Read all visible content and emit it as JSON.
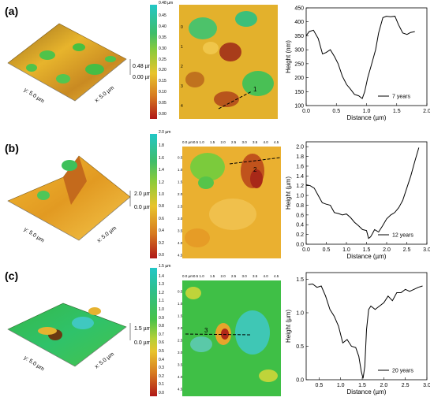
{
  "panels": [
    {
      "label": "(a)",
      "surface": {
        "x_axis": "x: 5.0 µm",
        "y_axis": "y: 5.0 µm",
        "z_top": "0.48 µm",
        "z_bottom": "0.00 µm"
      },
      "colorbar": {
        "top": "0.48 µm",
        "ticks": [
          "0.45",
          "0.40",
          "0.35",
          "0.30",
          "0.25",
          "0.20",
          "0.15",
          "0.10",
          "0.05",
          "0.00"
        ]
      },
      "map": {
        "y_ticks": [
          "0",
          "1",
          "2",
          "3",
          "4"
        ],
        "line_label": "1"
      }
    },
    {
      "label": "(b)",
      "surface": {
        "x_axis": "x: 5.0 µm",
        "y_axis": "y: 5.0 µm",
        "z_top": "2.0 µm",
        "z_bottom": "0.0 µm"
      },
      "colorbar": {
        "top": "2.0 µm",
        "ticks": [
          "1.8",
          "1.6",
          "1.4",
          "1.2",
          "1.0",
          "0.8",
          "0.6",
          "0.4",
          "0.2",
          "0.0"
        ]
      },
      "map": {
        "x_ticks": [
          "0.0 µm0.5",
          "1.0",
          "1.5",
          "2.0",
          "2.5",
          "3.0",
          "3.5",
          "4.0",
          "4.5"
        ],
        "y_ticks": [
          "0.5",
          "1.0",
          "1.5",
          "2.0",
          "2.5",
          "3.0",
          "3.5",
          "4.0",
          "4.5"
        ],
        "line_label": "2"
      }
    },
    {
      "label": "(c)",
      "surface": {
        "x_axis": "x: 5.0 µm",
        "y_axis": "y: 5.0 µm",
        "z_top": "1.5 µm",
        "z_bottom": "0.0 µm"
      },
      "colorbar": {
        "top": "1.5 µm",
        "ticks": [
          "1.4",
          "1.3",
          "1.2",
          "1.1",
          "1.0",
          "0.9",
          "0.8",
          "0.7",
          "0.6",
          "0.5",
          "0.4",
          "0.3",
          "0.2",
          "0.1",
          "0.0"
        ]
      },
      "map": {
        "x_ticks": [
          "0.0 µm0.5",
          "1.0",
          "1.5",
          "2.0",
          "2.5",
          "3.0",
          "3.5",
          "4.0",
          "4.5"
        ],
        "y_ticks": [
          "0.5",
          "1.0",
          "1.5",
          "2.0",
          "2.5",
          "3.0",
          "3.5",
          "4.0",
          "4.5"
        ],
        "line_label": "3"
      }
    }
  ],
  "chart_data": [
    {
      "type": "line",
      "xlabel": "Distance (µm)",
      "ylabel": "Height (nm)",
      "xlim": [
        0,
        2.0
      ],
      "ylim": [
        100,
        450
      ],
      "x_ticks": [
        "0.0",
        "0.5",
        "1.0",
        "1.5",
        "2.0"
      ],
      "y_ticks": [
        "100",
        "150",
        "200",
        "250",
        "300",
        "350",
        "400",
        "450"
      ],
      "series": [
        {
          "name": "7 years",
          "x": [
            0,
            0.05,
            0.12,
            0.2,
            0.27,
            0.33,
            0.4,
            0.47,
            0.53,
            0.6,
            0.67,
            0.73,
            0.8,
            0.87,
            0.93,
            0.97,
            1.02,
            1.08,
            1.15,
            1.2,
            1.27,
            1.33,
            1.4,
            1.47,
            1.53,
            1.6,
            1.67,
            1.73,
            1.8
          ],
          "y": [
            350,
            365,
            370,
            340,
            285,
            290,
            300,
            275,
            250,
            205,
            175,
            160,
            140,
            135,
            125,
            150,
            200,
            245,
            300,
            360,
            415,
            420,
            418,
            420,
            390,
            360,
            355,
            362,
            365
          ]
        }
      ]
    },
    {
      "type": "line",
      "xlabel": "Distance (µm)",
      "ylabel": "Height (µm)",
      "xlim": [
        0,
        3.0
      ],
      "ylim": [
        0.0,
        2.1
      ],
      "x_ticks": [
        "0.0",
        "0.5",
        "1.0",
        "1.5",
        "2.0",
        "2.5",
        "3.0"
      ],
      "y_ticks": [
        "0.0",
        "0.2",
        "0.4",
        "0.6",
        "0.8",
        "1.0",
        "1.2",
        "1.4",
        "1.6",
        "1.8",
        "2.0"
      ],
      "series": [
        {
          "name": "12 years",
          "x": [
            0,
            0.1,
            0.2,
            0.3,
            0.4,
            0.5,
            0.6,
            0.7,
            0.8,
            0.9,
            1.0,
            1.1,
            1.2,
            1.3,
            1.4,
            1.5,
            1.55,
            1.6,
            1.65,
            1.7,
            1.8,
            1.9,
            2.0,
            2.1,
            2.2,
            2.3,
            2.4,
            2.5,
            2.6,
            2.7,
            2.8
          ],
          "y": [
            1.22,
            1.2,
            1.15,
            1.0,
            0.85,
            0.82,
            0.8,
            0.65,
            0.63,
            0.6,
            0.62,
            0.55,
            0.45,
            0.38,
            0.3,
            0.28,
            0.12,
            0.15,
            0.22,
            0.3,
            0.25,
            0.38,
            0.52,
            0.6,
            0.65,
            0.75,
            0.9,
            1.15,
            1.4,
            1.7,
            1.98
          ]
        }
      ]
    },
    {
      "type": "line",
      "xlabel": "Distance (µm)",
      "ylabel": "Height (µm)",
      "xlim": [
        0.2,
        3.0
      ],
      "ylim": [
        0.0,
        1.6
      ],
      "x_ticks": [
        "0.5",
        "1.0",
        "1.5",
        "2.0",
        "2.5",
        "3.0"
      ],
      "y_ticks": [
        "0.0",
        "0.5",
        "1.0",
        "1.5"
      ],
      "series": [
        {
          "name": "20 years",
          "x": [
            0.25,
            0.35,
            0.45,
            0.55,
            0.65,
            0.75,
            0.85,
            0.95,
            1.05,
            1.15,
            1.25,
            1.35,
            1.42,
            1.48,
            1.52,
            1.56,
            1.6,
            1.65,
            1.7,
            1.8,
            1.9,
            2.0,
            2.1,
            2.2,
            2.3,
            2.4,
            2.5,
            2.6,
            2.7,
            2.8,
            2.9
          ],
          "y": [
            1.42,
            1.43,
            1.38,
            1.4,
            1.25,
            1.05,
            0.95,
            0.8,
            0.55,
            0.6,
            0.5,
            0.48,
            0.35,
            0.12,
            0.02,
            0.2,
            0.75,
            1.05,
            1.1,
            1.05,
            1.1,
            1.15,
            1.25,
            1.18,
            1.3,
            1.3,
            1.35,
            1.32,
            1.35,
            1.38,
            1.4
          ]
        }
      ]
    }
  ]
}
